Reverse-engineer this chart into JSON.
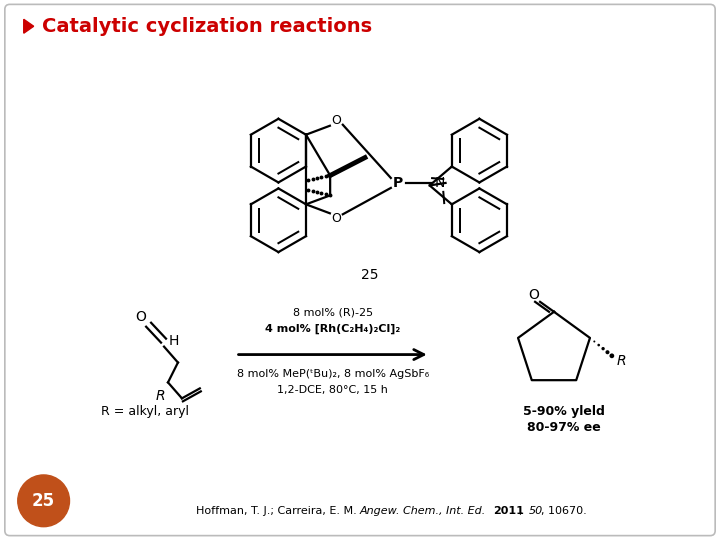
{
  "bg_color": "#ffffff",
  "title_text": "Catalytic cyclization reactions",
  "title_bullet": "➤",
  "title_color": "#cc0000",
  "title_fontsize": 14,
  "compound_number": "25",
  "cond1": "8 mol% (R)-25",
  "cond2": "4 mol% [Rh(C₂H₄)₂Cl]₂",
  "cond3": "8 mol% MeP(ᵗBu)₂, 8 mol% AgSbF₆",
  "cond4": "1,2-DCE, 80°C, 15 h",
  "yield1": "5-90% yleld",
  "yield2": "80-97% ee",
  "r_def": "R = alkyl, aryl",
  "slide_number": "25",
  "slide_num_bg": "#c0501a",
  "slide_num_color": "#ffffff",
  "footer_normal": "Hoffman, T. J.; Carreira, E. M. ",
  "footer_italic": "Angew. Chem., Int. Ed.",
  "footer_normal2": " ",
  "footer_bold": "2011",
  "footer_normal3": ", ",
  "footer_italic2": "50",
  "footer_normal4": ", 10670."
}
